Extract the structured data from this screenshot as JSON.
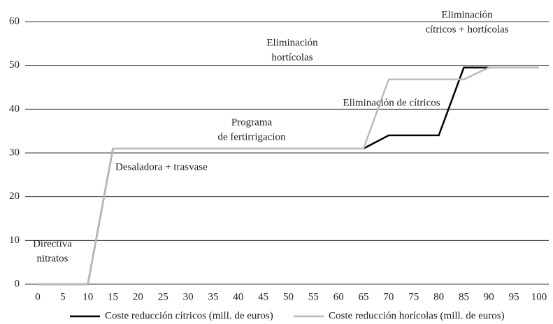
{
  "chart_data": {
    "type": "line",
    "x": [
      0,
      5,
      10,
      15,
      20,
      25,
      30,
      35,
      40,
      45,
      50,
      55,
      60,
      65,
      70,
      75,
      80,
      85,
      90,
      95,
      100
    ],
    "xlim": [
      0,
      100
    ],
    "xticks": [
      0,
      5,
      10,
      15,
      20,
      25,
      30,
      35,
      40,
      45,
      50,
      55,
      60,
      65,
      70,
      75,
      80,
      85,
      90,
      95,
      100
    ],
    "ylim": [
      0,
      60
    ],
    "yticks": [
      0,
      10,
      20,
      30,
      40,
      50,
      60
    ],
    "grid": true,
    "series": [
      {
        "name": "Coste reducción cítricos (mill. de euros)",
        "color": "#000000",
        "values": [
          0,
          0,
          0,
          31,
          31,
          31,
          31,
          31,
          31,
          31,
          31,
          31,
          31,
          31,
          34,
          34,
          34,
          49.5,
          49.5,
          49.5,
          49.5
        ]
      },
      {
        "name": "Coste reducción horícolas (mill. de euros)",
        "color": "#bbbbbb",
        "values": [
          0,
          0,
          0,
          31,
          31,
          31,
          31,
          31,
          31,
          31,
          31,
          31,
          31,
          31,
          46.8,
          46.8,
          46.8,
          46.8,
          49.5,
          49.5,
          49.5
        ]
      }
    ],
    "annotations": [
      {
        "lines": [
          "Directiva",
          "nitratos"
        ]
      },
      {
        "lines": [
          "Desaladora + trasvase"
        ]
      },
      {
        "lines": [
          "Programa",
          "de fertirrigacion"
        ]
      },
      {
        "lines": [
          "Eliminación",
          "hortícolas"
        ]
      },
      {
        "lines": [
          "Eliminación de cítricos"
        ]
      },
      {
        "lines": [
          "Eliminación",
          "cítricos + hortícolas"
        ]
      }
    ]
  }
}
